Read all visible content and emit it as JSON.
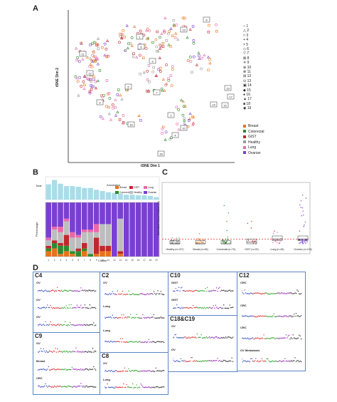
{
  "panels": {
    "A": "A",
    "B": "B",
    "C": "C",
    "D": "D"
  },
  "tsne": {
    "xlabel": "tSNE Dim 1",
    "ylabel": "tSNE Dim 2",
    "cluster_legend": [
      "1",
      "2",
      "3",
      "4",
      "5",
      "6",
      "7",
      "8",
      "9",
      "10",
      "11",
      "12",
      "13",
      "14",
      "15",
      "16",
      "17",
      "18",
      "19"
    ],
    "tumor_legend": [
      {
        "label": "Breast",
        "color": "#e8731a"
      },
      {
        "label": "Colorectal",
        "color": "#2e8b2e"
      },
      {
        "label": "GIST",
        "color": "#c0282d"
      },
      {
        "label": "Healthy",
        "color": "#9a9a9a"
      },
      {
        "label": "Lung",
        "color": "#e86aa8"
      },
      {
        "label": "Ovarian",
        "color": "#7a3fd1"
      }
    ],
    "cluster_tags": [
      "11",
      "1",
      "12",
      "2",
      "3",
      "13",
      "14",
      "5",
      "16",
      "19",
      "15",
      "4",
      "9",
      "8",
      "10",
      "17",
      "18",
      "6",
      "7"
    ]
  },
  "panel_b": {
    "top_ylabel": "Total",
    "bottom_ylabel": "Percentage",
    "xlabel": "Cluster",
    "annotation_title": "Annotation",
    "annotation_items": [
      {
        "label": "Breast",
        "color": "#e8731a"
      },
      {
        "label": "GIST",
        "color": "#c0282d"
      },
      {
        "label": "Lung",
        "color": "#e86aa8"
      },
      {
        "label": "Colorectal",
        "color": "#2e8b2e"
      },
      {
        "label": "Healthy",
        "color": "#bdbdbd"
      },
      {
        "label": "Ovarian",
        "color": "#7a3fd1"
      }
    ]
  },
  "chart_data": [
    {
      "type": "bar",
      "panel": "B-top",
      "categories": [
        "1",
        "2",
        "3",
        "4",
        "5",
        "6",
        "7",
        "8",
        "9",
        "10",
        "11",
        "12",
        "13",
        "14",
        "15",
        "16",
        "17",
        "18",
        "19"
      ],
      "values": [
        25,
        32,
        26,
        22,
        22,
        21,
        19,
        19,
        16,
        14,
        12,
        11,
        10,
        8,
        8,
        7,
        7,
        6,
        4
      ],
      "color": "#a8dde9",
      "ylabel": "Total"
    },
    {
      "type": "bar",
      "panel": "B-bottom",
      "stacked": true,
      "categories": [
        "1",
        "2",
        "3",
        "4",
        "5",
        "6",
        "7",
        "8",
        "9",
        "10",
        "11",
        "12",
        "13",
        "14",
        "15",
        "16",
        "17",
        "18",
        "19"
      ],
      "series": [
        {
          "name": "Breast",
          "color": "#e8731a",
          "values": [
            10,
            15,
            5,
            10,
            5,
            0,
            10,
            0,
            5,
            10,
            10,
            0,
            5,
            0,
            0,
            0,
            0,
            0,
            0
          ]
        },
        {
          "name": "Colorectal",
          "color": "#2e8b2e",
          "values": [
            5,
            10,
            15,
            10,
            5,
            10,
            5,
            5,
            0,
            0,
            0,
            0,
            0,
            0,
            0,
            0,
            0,
            0,
            0
          ]
        },
        {
          "name": "GIST",
          "color": "#c0282d",
          "values": [
            5,
            5,
            5,
            20,
            0,
            5,
            10,
            0,
            30,
            10,
            10,
            0,
            5,
            0,
            0,
            0,
            0,
            0,
            0
          ]
        },
        {
          "name": "Healthy",
          "color": "#bdbdbd",
          "values": [
            10,
            20,
            20,
            25,
            25,
            20,
            20,
            40,
            10,
            40,
            40,
            0,
            60,
            0,
            0,
            0,
            0,
            0,
            0
          ]
        },
        {
          "name": "Lung",
          "color": "#e86aa8",
          "values": [
            5,
            5,
            10,
            5,
            10,
            5,
            5,
            5,
            15,
            0,
            0,
            0,
            0,
            0,
            0,
            0,
            0,
            0,
            0
          ]
        },
        {
          "name": "Ovarian",
          "color": "#7a3fd1",
          "values": [
            65,
            45,
            45,
            30,
            55,
            60,
            50,
            50,
            40,
            40,
            40,
            100,
            30,
            100,
            100,
            100,
            100,
            100,
            100
          ]
        }
      ],
      "ylabel": "Percentage",
      "xlabel": "Cluster",
      "ylim": [
        0,
        100
      ]
    },
    {
      "type": "scatter",
      "panel": "C",
      "ylabel": "Estimated Tumor Fraction (%)",
      "categories": [
        "Healthy (n=137)",
        "Breast (n=46)",
        "Colorectal (n=70)",
        "GIST (n=20)",
        "Lung (n=45)",
        "Ovarian (n=125)"
      ],
      "medians": [
        0,
        0,
        0,
        1,
        3,
        3
      ],
      "threshold": 3,
      "threshold_color": "#e03030"
    }
  ],
  "panel_d": {
    "boxes": [
      {
        "title": "C4",
        "rows": [
          "OV",
          "OV",
          "OV"
        ]
      },
      {
        "title": "C9",
        "rows": [
          "OV",
          "Breast",
          "CRC"
        ]
      },
      {
        "title": "C2",
        "rows": [
          "OV",
          "Lung",
          "Lung"
        ]
      },
      {
        "title": "C8",
        "rows": [
          "OV",
          "Lung"
        ]
      },
      {
        "title": "C10",
        "rows": [
          "GIST",
          "GIST"
        ]
      },
      {
        "title": "C18&C19",
        "rows": [
          "OV",
          "OV"
        ]
      },
      {
        "title": "C12",
        "rows": [
          "CRC",
          "CRC",
          "CRC",
          "OV Metastasis"
        ]
      }
    ]
  }
}
